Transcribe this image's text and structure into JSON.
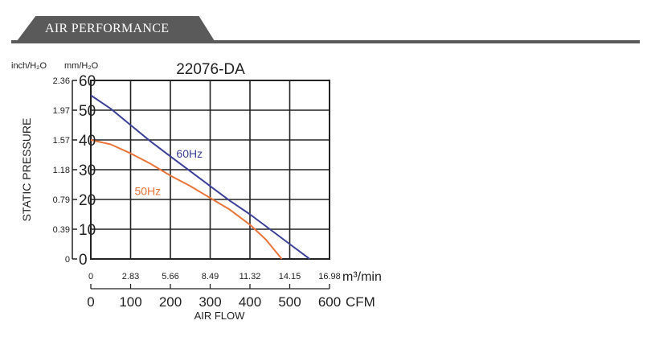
{
  "header": {
    "title": "AIR PERFORMANCE"
  },
  "colors": {
    "header_bg": "#5a5a5a",
    "series_60": "#3b3f97",
    "series_50": "#e9743a",
    "grid": "#222222"
  },
  "chart_data": {
    "type": "line",
    "title": "22076-DA",
    "xlabel": "AIR FLOW",
    "ylabel": "STATIC PRESSURE",
    "unit_left_outer": "inch/H₂O",
    "unit_left_inner": "mm/H₂O",
    "unit_x_top": "m³/min",
    "unit_x_bottom": "CFM",
    "xlim": [
      0,
      600
    ],
    "ylim": [
      0,
      60
    ],
    "x_ticks_cfm": [
      "0",
      "100",
      "200",
      "300",
      "400",
      "500",
      "600"
    ],
    "x_ticks_m3": [
      "0",
      "2.83",
      "5.66",
      "8.49",
      "11.32",
      "14.15",
      "16.98"
    ],
    "y_ticks_mm": [
      "0",
      "10",
      "20",
      "30",
      "40",
      "50",
      "60"
    ],
    "y_ticks_inch": [
      "0",
      "0.39",
      "0.79",
      "1.18",
      "1.57",
      "1.97",
      "2.36"
    ],
    "series": [
      {
        "name": "60Hz",
        "color": "#3b3f97",
        "x": [
          0,
          50,
          100,
          150,
          200,
          250,
          300,
          350,
          400,
          450,
          500,
          550
        ],
        "y": [
          55,
          50.5,
          45,
          39.5,
          34.5,
          29.5,
          24.5,
          19.5,
          15,
          10,
          5,
          0
        ]
      },
      {
        "name": "50Hz",
        "color": "#e9743a",
        "x": [
          0,
          50,
          100,
          150,
          200,
          250,
          300,
          350,
          400,
          440,
          480
        ],
        "y": [
          40,
          38.5,
          35.5,
          32,
          28,
          24.5,
          20.5,
          16.5,
          11.5,
          6.5,
          0
        ]
      }
    ]
  }
}
